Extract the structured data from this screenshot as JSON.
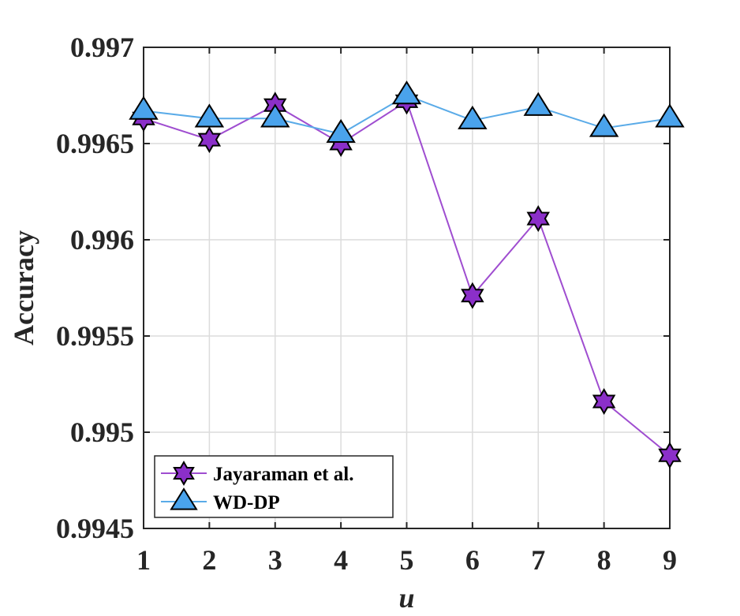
{
  "chart_data": {
    "type": "line",
    "xlabel": "u",
    "ylabel": "Accuracy",
    "x": [
      1,
      2,
      3,
      4,
      5,
      6,
      7,
      8,
      9
    ],
    "xlim": [
      1,
      9
    ],
    "ylim": [
      0.9945,
      0.997
    ],
    "x_ticks": [
      "1",
      "2",
      "3",
      "4",
      "5",
      "6",
      "7",
      "8",
      "9"
    ],
    "y_ticks": [
      {
        "value": 0.9945,
        "label": "0.9945"
      },
      {
        "value": 0.995,
        "label": "0.995"
      },
      {
        "value": 0.9955,
        "label": "0.9955"
      },
      {
        "value": 0.996,
        "label": "0.996"
      },
      {
        "value": 0.9965,
        "label": "0.9965"
      },
      {
        "value": 0.997,
        "label": "0.997"
      }
    ],
    "grid": true,
    "legend_position": "bottom-left",
    "series": [
      {
        "name": "Jayaraman et al.",
        "marker": "hexagram",
        "color": "#9f4dd0",
        "marker_fill": "#8b2fc9",
        "values": [
          0.99663,
          0.99652,
          0.9967,
          0.9965,
          0.99672,
          0.99571,
          0.99611,
          0.99516,
          0.99488
        ]
      },
      {
        "name": "WD-DP",
        "marker": "triangle",
        "color": "#5aabe8",
        "marker_fill": "#4aa3ec",
        "values": [
          0.99667,
          0.99663,
          0.99663,
          0.99655,
          0.99675,
          0.99662,
          0.99669,
          0.99658,
          0.99663
        ]
      }
    ]
  }
}
